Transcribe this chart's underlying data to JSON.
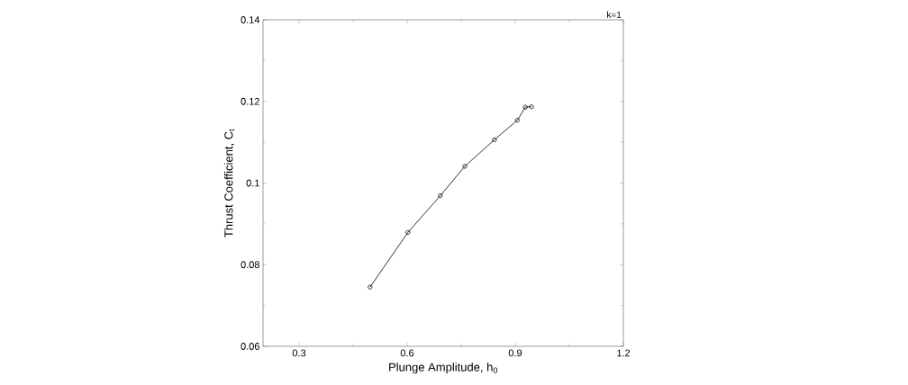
{
  "chart_data": {
    "type": "line",
    "xlabel": "Plunge Amplitude, h$_{0}$",
    "ylabel": "Thrust Coefficient, C$_{t}$",
    "annotations": [
      "k=1"
    ],
    "x": [
      0.497,
      0.602,
      0.692,
      0.76,
      0.842,
      0.906,
      0.928,
      0.945
    ],
    "series": [
      {
        "color": "#000000",
        "values": [
          0.0745,
          0.0879,
          0.0969,
          0.1041,
          0.1106,
          0.1154,
          0.1186,
          0.1187
        ]
      }
    ],
    "xlim": [
      0.2,
      1.2
    ],
    "ylim": [
      0.06,
      0.14
    ],
    "xticks": [
      0.3,
      0.6,
      0.9,
      1.2
    ],
    "yticks": [
      0.06,
      0.08,
      0.1,
      0.12,
      0.14
    ],
    "marker": "circle",
    "line_style": "solid"
  }
}
